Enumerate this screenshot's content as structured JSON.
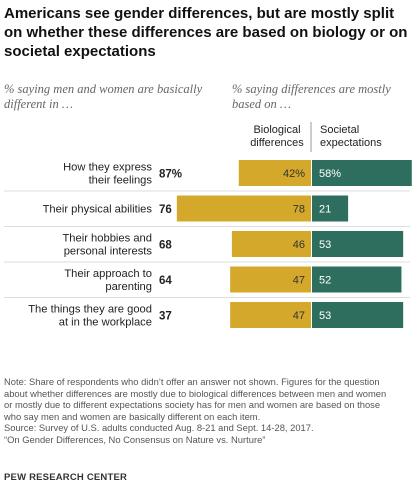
{
  "title": "Americans see gender differences, but are mostly split on whether these differences are based on biology or on societal expectations",
  "left_subhead": "% saying men and women are basically different in …",
  "right_subhead": "% saying differences are mostly based on …",
  "col_bio": "Biological differences",
  "col_soc": "Societal expectations",
  "colors": {
    "bio": "#d4a82a",
    "soc": "#2e6e5e",
    "bar_bg": "#ffffff"
  },
  "chart_data": {
    "type": "bar",
    "categories": [
      "How they express their feelings",
      "Their physical abilities",
      "Their hobbies and personal interests",
      "Their approach to parenting",
      "The things they are good at in the workplace"
    ],
    "category_lines": [
      [
        "How they express",
        "their feelings"
      ],
      [
        "Their physical abilities"
      ],
      [
        "Their hobbies and",
        "personal interests"
      ],
      [
        "Their approach to",
        "parenting"
      ],
      [
        "The things they are good",
        "at in the workplace"
      ]
    ],
    "different": [
      87,
      76,
      68,
      64,
      37
    ],
    "different_labels": [
      "87%",
      "76",
      "68",
      "64",
      "37"
    ],
    "series": [
      {
        "name": "Biological differences",
        "values": [
          42,
          78,
          46,
          47,
          47
        ],
        "labels": [
          "42%",
          "78",
          "46",
          "47",
          "47"
        ]
      },
      {
        "name": "Societal expectations",
        "values": [
          58,
          21,
          53,
          52,
          53
        ],
        "labels": [
          "58%",
          "21",
          "53",
          "52",
          "53"
        ]
      }
    ]
  },
  "note_lines": [
    "Note: Share of respondents who didn’t offer an answer not shown. Figures for the question",
    "about whether differences are mostly due to biological differences between men and women",
    "or mostly due to different expectations society has for men and women are based on those",
    "who say men and women are basically different on each item.",
    "Source: Survey of U.S. adults conducted Aug. 8-21 and Sept. 14-28, 2017.",
    "“On Gender Differences, No Consensus on Nature vs. Nurture”"
  ],
  "footer": "PEW RESEARCH CENTER"
}
